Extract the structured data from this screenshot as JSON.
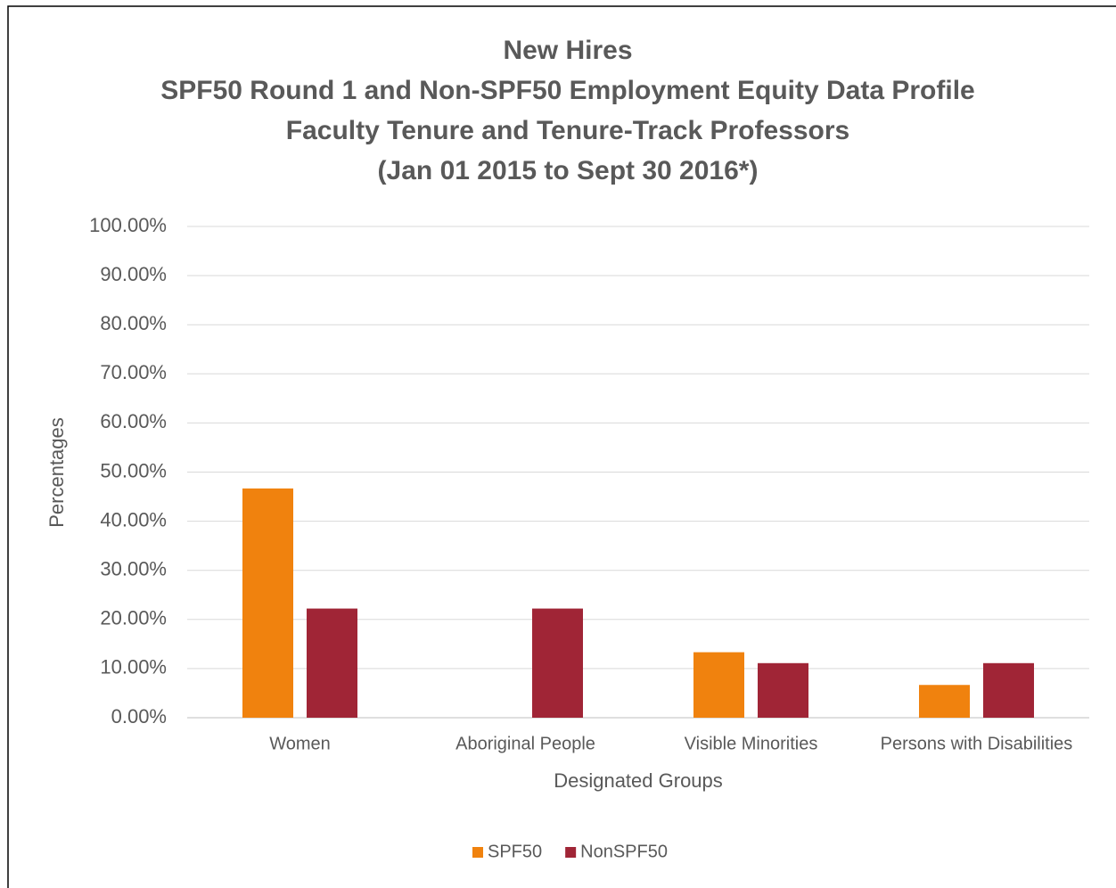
{
  "chart_data": {
    "type": "bar",
    "title": [
      "New Hires",
      "SPF50 Round 1 and Non-SPF50 Employment Equity Data Profile",
      "Faculty Tenure and Tenure-Track Professors",
      "(Jan 01 2015 to Sept 30 2016*)"
    ],
    "x_label": "Designated Groups",
    "y_label": "Percentages",
    "categories": [
      "Women",
      "Aboriginal People",
      "Visible Minorities",
      "Persons with Disabilities"
    ],
    "series": [
      {
        "name": "SPF50",
        "color": "#f0820e",
        "values": [
          46.67,
          0,
          13.33,
          6.67
        ]
      },
      {
        "name": "NonSPF50",
        "color": "#a02536",
        "values": [
          22.22,
          22.22,
          11.11,
          11.11
        ]
      }
    ],
    "ylim": [
      0,
      100
    ],
    "yticks": [
      {
        "value": 0,
        "label": "0.00%"
      },
      {
        "value": 10,
        "label": "10.00%"
      },
      {
        "value": 20,
        "label": "20.00%"
      },
      {
        "value": 30,
        "label": "30.00%"
      },
      {
        "value": 40,
        "label": "40.00%"
      },
      {
        "value": 50,
        "label": "50.00%"
      },
      {
        "value": 60,
        "label": "60.00%"
      },
      {
        "value": 70,
        "label": "70.00%"
      },
      {
        "value": 80,
        "label": "80.00%"
      },
      {
        "value": 90,
        "label": "90.00%"
      },
      {
        "value": 100,
        "label": "100.00%"
      }
    ],
    "grid": true,
    "legend": "bottom"
  }
}
